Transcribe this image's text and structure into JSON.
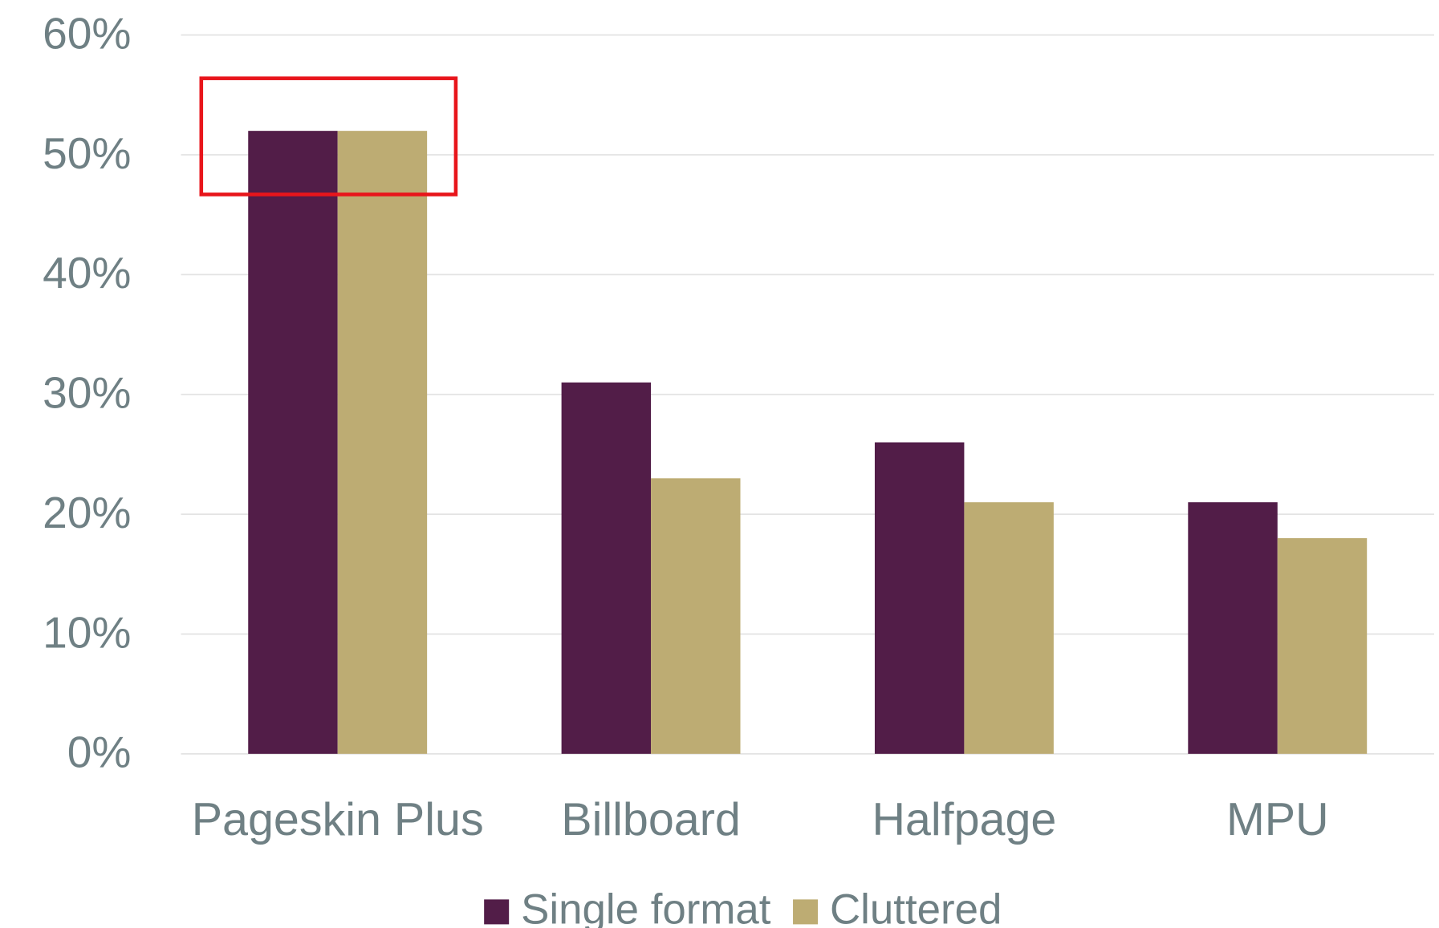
{
  "chart_data": {
    "type": "bar",
    "categories": [
      "Pageskin Plus",
      "Billboard",
      "Halfpage",
      "MPU"
    ],
    "series": [
      {
        "name": "Single format",
        "color": "#521d48",
        "values": [
          52,
          31,
          26,
          21
        ]
      },
      {
        "name": "Cluttered",
        "color": "#bdac73",
        "values": [
          52,
          23,
          21,
          18
        ]
      }
    ],
    "ylim": [
      0,
      60
    ],
    "yticks": [
      {
        "value": 0,
        "label": "0%"
      },
      {
        "value": 10,
        "label": "10%"
      },
      {
        "value": 20,
        "label": "20%"
      },
      {
        "value": 30,
        "label": "30%"
      },
      {
        "value": 40,
        "label": "40%"
      },
      {
        "value": 50,
        "label": "50%"
      },
      {
        "value": 60,
        "label": "60%"
      }
    ],
    "grid": true,
    "legend": "bottom"
  }
}
